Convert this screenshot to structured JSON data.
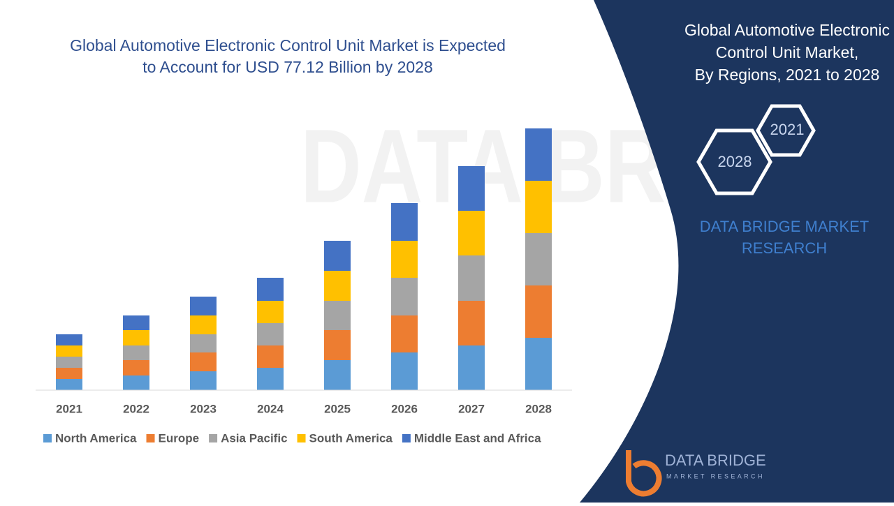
{
  "chart_data": {
    "type": "bar",
    "stacked": true,
    "title": [
      "Global Automotive Electronic Control Unit Market is Expected",
      "to Account for USD 77.12 Billion by 2028"
    ],
    "categories": [
      "2021",
      "2022",
      "2023",
      "2024",
      "2025",
      "2026",
      "2027",
      "2028"
    ],
    "series": [
      {
        "name": "North America",
        "color": "#5b9bd5",
        "values": [
          16,
          21,
          27,
          32,
          43,
          54,
          64,
          75
        ]
      },
      {
        "name": "Europe",
        "color": "#ed7d31",
        "values": [
          16,
          22,
          27,
          32,
          43,
          53,
          64,
          75
        ]
      },
      {
        "name": "Asia Pacific",
        "color": "#a5a5a5",
        "values": [
          16,
          21,
          26,
          32,
          42,
          54,
          65,
          75
        ]
      },
      {
        "name": "South America",
        "color": "#ffc000",
        "values": [
          16,
          22,
          27,
          32,
          43,
          53,
          64,
          75
        ]
      },
      {
        "name": "Middle East and Africa",
        "color": "#4472c4",
        "values": [
          16,
          21,
          27,
          33,
          43,
          54,
          64,
          75
        ]
      }
    ],
    "ylim": [
      0,
      400
    ],
    "legend": "bottom"
  },
  "panel": {
    "title": [
      "Global Automotive Electronic",
      "Control Unit Market,",
      "By Regions, 2021 to 2028"
    ],
    "hexagons": [
      "2021",
      "2028"
    ],
    "brand": [
      "DATA BRIDGE MARKET",
      "RESEARCH"
    ]
  },
  "logo": {
    "name": "DATA BRIDGE",
    "tagline": "MARKET RESEARCH"
  }
}
